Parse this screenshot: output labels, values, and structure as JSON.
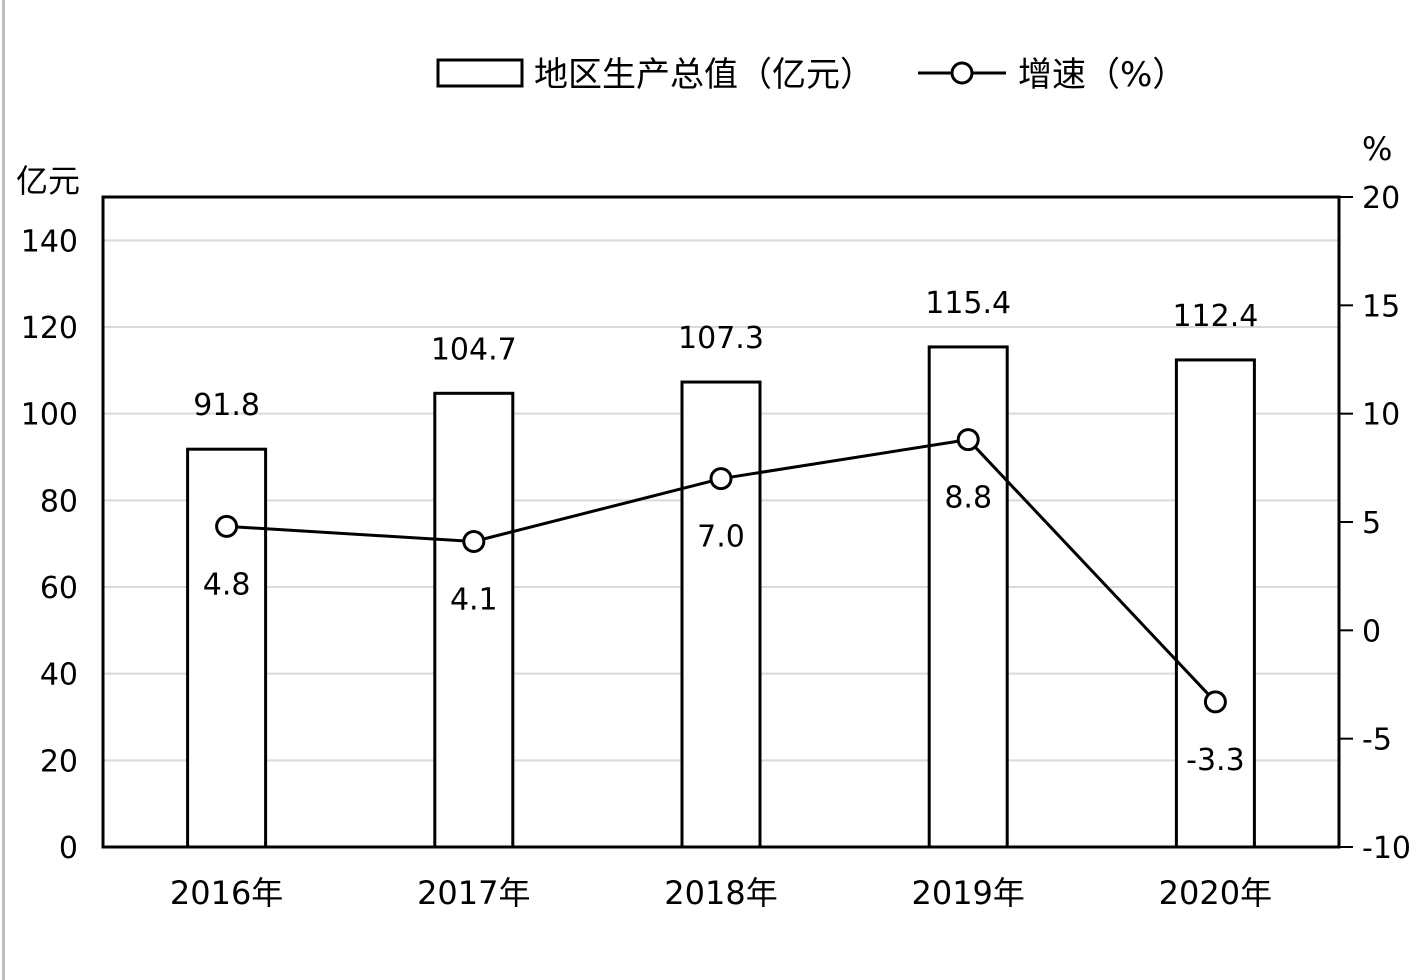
{
  "chart_data": {
    "type": "bar+line",
    "categories": [
      "2016年",
      "2017年",
      "2018年",
      "2019年",
      "2020年"
    ],
    "series": [
      {
        "name": "地区生产总值（亿元）",
        "type": "bar",
        "axis": "left",
        "values": [
          91.8,
          104.7,
          107.3,
          115.4,
          112.4
        ],
        "labels": [
          "91.8",
          "104.7",
          "107.3",
          "115.4",
          "112.4"
        ]
      },
      {
        "name": "增速（%）",
        "type": "line",
        "axis": "right",
        "marker": "hollow-circle",
        "values": [
          4.8,
          4.1,
          7.0,
          8.8,
          -3.3
        ],
        "labels": [
          "4.8",
          "4.1",
          "7.0",
          "8.8",
          "-3.3"
        ]
      }
    ],
    "left_axis": {
      "unit": "亿元",
      "range": [
        0,
        150
      ],
      "ticks": [
        0,
        20,
        40,
        60,
        80,
        100,
        120,
        140
      ],
      "tick_labels": [
        "0",
        "20",
        "40",
        "60",
        "80",
        "100",
        "120",
        "140"
      ]
    },
    "right_axis": {
      "unit": "%",
      "range": [
        -10,
        20
      ],
      "ticks": [
        -10,
        -5,
        0,
        5,
        10,
        15,
        20
      ],
      "tick_labels": [
        "-10",
        "-5",
        "0",
        "5",
        "10",
        "15",
        "20"
      ]
    },
    "grid": true,
    "legend_position": "top-center",
    "colors": {
      "bar_fill": "#ffffff",
      "bar_stroke": "#000000",
      "line": "#000000",
      "grid": "#d9d9d9"
    }
  }
}
